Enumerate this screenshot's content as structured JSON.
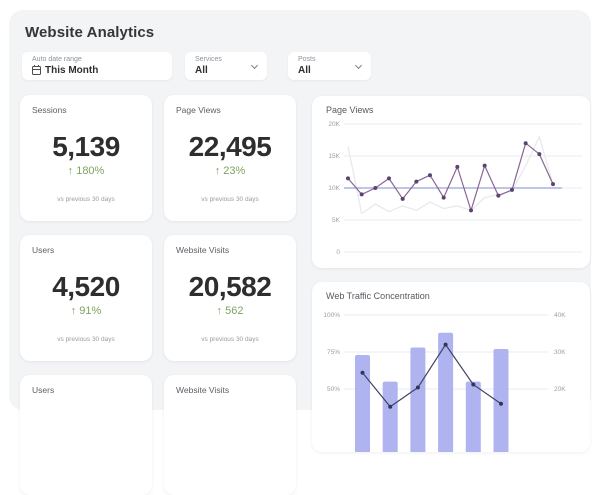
{
  "header": {
    "title": "Website Analytics"
  },
  "filters": [
    {
      "label": "Auto date range",
      "value": "This Month",
      "icon": "calendar-icon"
    },
    {
      "label": "Services",
      "value": "All",
      "icon": "chevron-down-icon"
    },
    {
      "label": "Posts",
      "value": "All",
      "icon": "chevron-down-icon"
    }
  ],
  "kpis": [
    {
      "label": "Sessions",
      "value": "5,139",
      "delta": "↑ 180%",
      "compare": "vs previous 30 days"
    },
    {
      "label": "Page Views",
      "value": "22,495",
      "delta": "↑ 23%",
      "compare": "vs previous 30 days"
    },
    {
      "label": "Users",
      "value": "4,520",
      "delta": "↑ 91%",
      "compare": "vs previous 30 days"
    },
    {
      "label": "Website Visits",
      "value": "20,582",
      "delta": "↑ 562",
      "compare": "vs previous 30 days"
    },
    {
      "label": "Users"
    },
    {
      "label": "Website Visits"
    }
  ],
  "colors": {
    "panel_bg": "#f3f4f6",
    "card_bg": "#ffffff",
    "positive_green": "#7ba55e",
    "grid_line": "#e7ebf3",
    "line_purple": "#8a6596",
    "dot_purple": "#5c4270",
    "baseline_blue": "#93a4d8",
    "previous_gray": "#e9e9ee",
    "bar_periwinkle": "#afb4f0",
    "line_navy": "#3e4464",
    "dot_navy": "#303659"
  },
  "chart_data": [
    {
      "type": "line",
      "title": "Page Views",
      "ylim": [
        0,
        20000
      ],
      "ytick_labels": [
        "0",
        "5K",
        "10K",
        "15K",
        "20K"
      ],
      "yticks": [
        0,
        5000,
        10000,
        15000,
        20000
      ],
      "grid": true,
      "legend": "none",
      "series": [
        {
          "name": "previous-period",
          "role": "background",
          "values": [
            16500,
            6000,
            7500,
            6300,
            7200,
            6500,
            7800,
            6800,
            7200,
            6500,
            8500,
            9000,
            9500,
            13500,
            18000,
            10500
          ]
        },
        {
          "name": "baseline",
          "role": "hline",
          "value": 10000
        },
        {
          "name": "page-views",
          "role": "main",
          "values": [
            11500,
            9000,
            10000,
            11500,
            8300,
            11000,
            12000,
            8500,
            13300,
            6500,
            13500,
            8800,
            9700,
            17000,
            15300,
            10600
          ]
        }
      ]
    },
    {
      "type": "combo",
      "title": "Web Traffic Concentration",
      "left_ylim": [
        0,
        100
      ],
      "left_tick_labels": [
        "100%",
        "75%",
        "50%"
      ],
      "left_ticks": [
        100,
        75,
        50
      ],
      "right_tick_labels": [
        "40K",
        "30K",
        "20K"
      ],
      "grid": true,
      "bars": {
        "name": "traffic-share-bars",
        "values": [
          73,
          55,
          78,
          88,
          55,
          77
        ]
      },
      "line": {
        "name": "traffic-trend-line",
        "values": [
          61,
          38,
          51,
          80,
          53,
          40
        ]
      }
    }
  ]
}
